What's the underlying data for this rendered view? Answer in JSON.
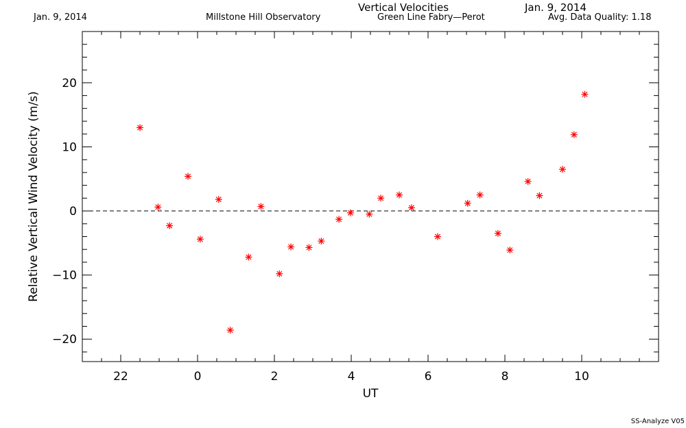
{
  "header": {
    "date_left": "Jan. 9, 2014",
    "observatory": "Millstone Hill Observatory",
    "title": "Vertical Velocities",
    "date_right": "Jan. 9, 2014",
    "instrument": "Green Line Fabry—Perot",
    "quality": "Avg. Data Quality: 1.18"
  },
  "footer": {
    "software": "SS-Analyze V05"
  },
  "colors": {
    "marker": "#ff0000",
    "axis": "#000000"
  },
  "chart_data": {
    "type": "scatter",
    "xlabel": "UT",
    "ylabel": "Relative Vertical Wind Velocity (m/s)",
    "xlim": [
      21,
      36
    ],
    "ylim": [
      -23.5,
      28
    ],
    "x_ticks": [
      22,
      24,
      26,
      28,
      30,
      32,
      34
    ],
    "x_tick_labels": [
      "22",
      "0",
      "2",
      "4",
      "6",
      "8",
      "10"
    ],
    "y_ticks": [
      -20,
      -10,
      0,
      10,
      20
    ],
    "y_tick_labels": [
      "−20",
      "−10",
      "0",
      "10",
      "20"
    ],
    "zero_line": {
      "y": 0,
      "style": "dashed"
    },
    "marker": "asterisk",
    "series": [
      {
        "x": [
          22.5,
          22.97,
          23.27,
          23.75,
          24.07,
          24.55,
          24.85,
          25.33,
          25.65,
          26.13,
          26.43,
          26.9,
          27.22,
          27.68,
          27.98,
          28.47,
          28.77,
          29.25,
          29.57,
          30.25,
          31.03,
          31.35,
          31.82,
          32.13,
          32.6,
          32.9,
          33.5,
          33.8,
          34.08
        ],
        "y": [
          13.0,
          0.6,
          -2.3,
          5.4,
          -4.4,
          1.8,
          -18.6,
          -7.2,
          0.7,
          -9.8,
          -5.6,
          -5.7,
          -4.7,
          -1.3,
          -0.3,
          -0.5,
          2.0,
          2.5,
          0.5,
          -4.0,
          1.2,
          2.5,
          -3.5,
          -6.1,
          4.6,
          2.4,
          6.5,
          11.9,
          18.2
        ]
      }
    ]
  }
}
